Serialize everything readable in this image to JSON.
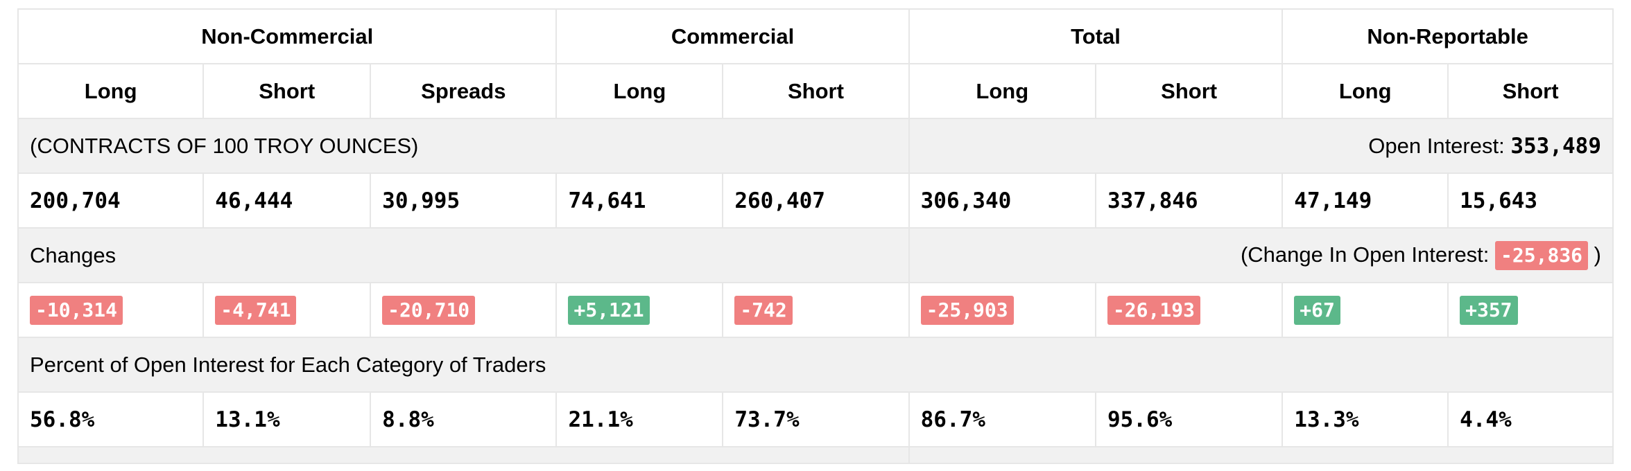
{
  "headers": {
    "groups": [
      "Non-Commercial",
      "Commercial",
      "Total",
      "Non-Reportable"
    ],
    "sub": [
      "Long",
      "Short",
      "Spreads",
      "Long",
      "Short",
      "Long",
      "Short",
      "Long",
      "Short"
    ]
  },
  "units_row": {
    "label": "(CONTRACTS OF 100 TROY OUNCES)",
    "oi_label": "Open Interest:",
    "oi_value": "353,489"
  },
  "positions": [
    "200,704",
    "46,444",
    "30,995",
    "74,641",
    "260,407",
    "306,340",
    "337,846",
    "47,149",
    "15,643"
  ],
  "changes_row": {
    "label": "Changes",
    "oi_prefix": "(Change In Open Interest:",
    "oi_value": "-25,836",
    "oi_suffix": ")"
  },
  "changes": [
    "-10,314",
    "-4,741",
    "-20,710",
    "+5,121",
    "-742",
    "-25,903",
    "-26,193",
    "+67",
    "+357"
  ],
  "colors": {
    "negative": "#f08080",
    "positive": "#5cb88a",
    "grey_row": "#f1f1f1",
    "border": "#e6e6e6"
  },
  "percent_row": {
    "label": "Percent of Open Interest for Each Category of Traders"
  },
  "percents": [
    "56.8%",
    "13.1%",
    "8.8%",
    "21.1%",
    "73.7%",
    "86.7%",
    "95.6%",
    "13.3%",
    "4.4%"
  ]
}
